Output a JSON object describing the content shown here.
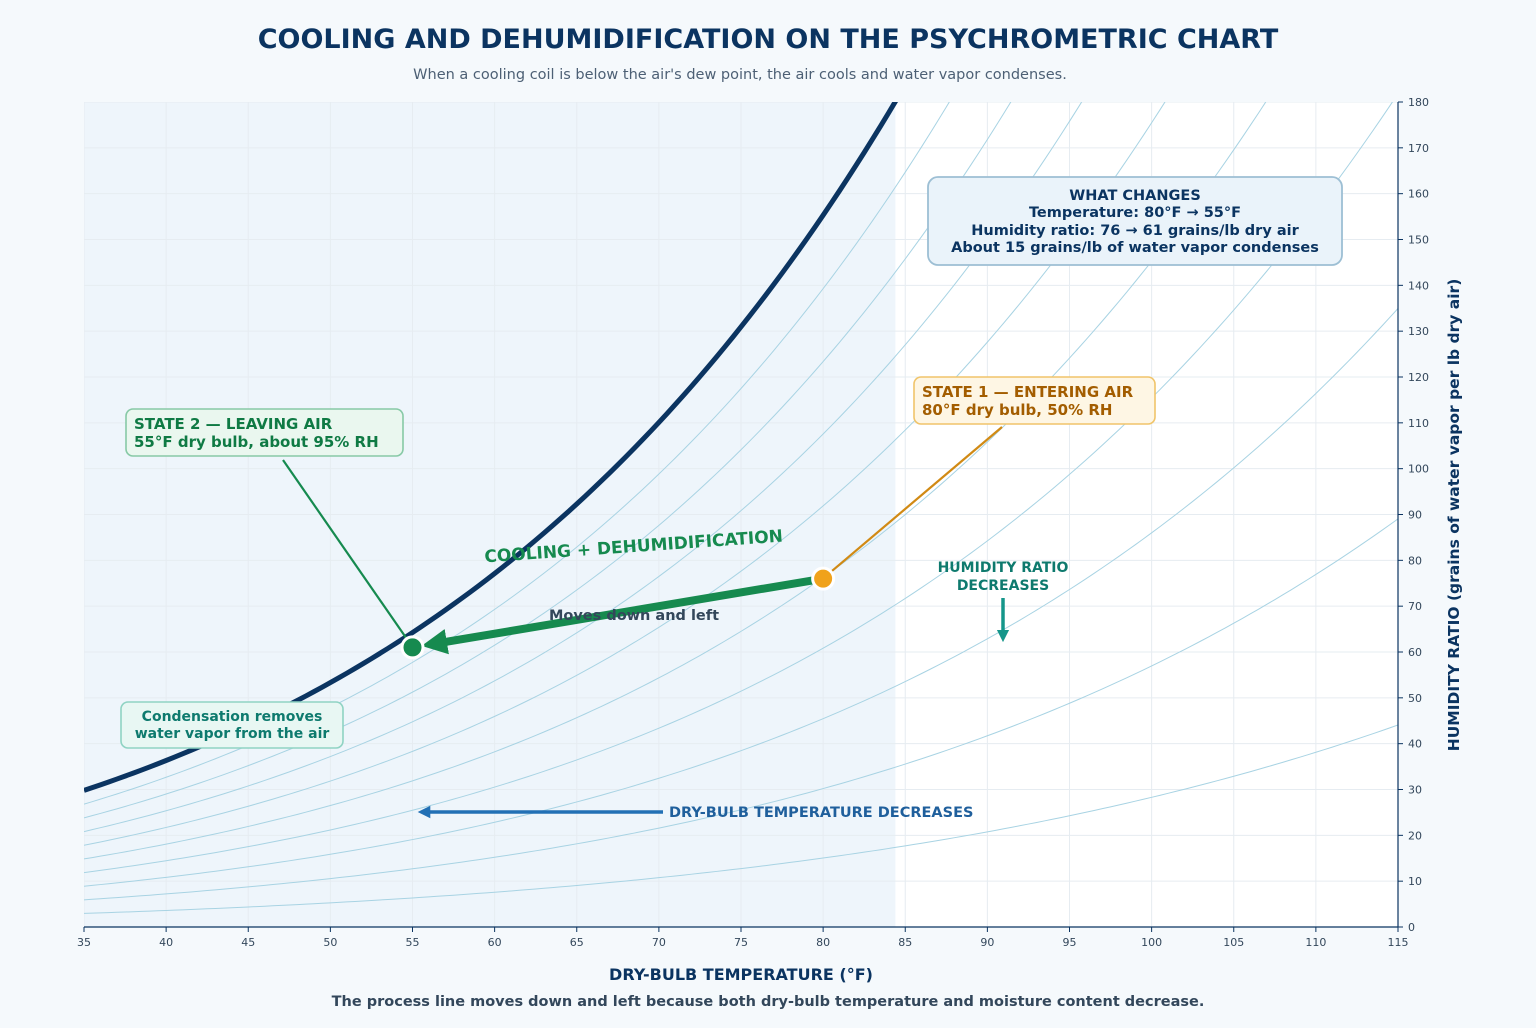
{
  "header": {
    "title": "COOLING AND DEHUMIDIFICATION ON THE PSYCHROMETRIC CHART",
    "subtitle": "When a cooling coil is below the air's dew point, the air cools and water vapor condenses."
  },
  "footer": {
    "caption": "The process line moves down and left because both dry-bulb temperature and moisture content decrease."
  },
  "colors": {
    "navy": "#0b3461",
    "saturation": "#0b3461",
    "rh_curves": "#a8d3e3",
    "grid": "#e6ecf1",
    "process_green": "#168a4f",
    "state1_orange": "#f0a21b",
    "state1_text": "#a35d00",
    "state2_green": "#0f7a44",
    "teal": "#15968a",
    "blue_arrow": "#2270b5",
    "shade": "#eef5fb"
  },
  "chart_data": {
    "type": "line",
    "xlabel": "DRY-BULB TEMPERATURE (°F)",
    "ylabel": "HUMIDITY RATIO (grains of water vapor per lb dry air)",
    "xlim": [
      35,
      115
    ],
    "ylim": [
      0,
      180
    ],
    "x_ticks": [
      35,
      40,
      45,
      50,
      55,
      60,
      65,
      70,
      75,
      80,
      85,
      90,
      95,
      100,
      105,
      110,
      115
    ],
    "y_ticks": [
      0,
      10,
      20,
      30,
      40,
      50,
      60,
      70,
      80,
      90,
      100,
      110,
      120,
      130,
      140,
      150,
      160,
      170,
      180
    ],
    "grid": true,
    "y_axis_side": "right",
    "rh_curves_percent": [
      10,
      20,
      30,
      40,
      50,
      60,
      70,
      80,
      90,
      100
    ],
    "shaded_region_x": [
      35,
      84.4
    ],
    "process": {
      "label": "COOLING + DEHUMIDIFICATION",
      "sublabel": "Moves down and left",
      "from": {
        "x": 80,
        "y": 76
      },
      "to": {
        "x": 55,
        "y": 61
      }
    },
    "points": [
      {
        "name": "state1",
        "x": 80,
        "y": 76,
        "label_line1": "STATE 1 — ENTERING AIR",
        "label_line2": "80°F dry bulb, 50% RH"
      },
      {
        "name": "state2",
        "x": 55,
        "y": 61,
        "label_line1": "STATE 2 — LEAVING AIR",
        "label_line2": "55°F dry bulb, about 95% RH"
      }
    ],
    "annotations": {
      "condensation": [
        "Condensation removes",
        "water vapor from the air"
      ],
      "humidity_ratio": [
        "HUMIDITY RATIO",
        "DECREASES"
      ],
      "dry_bulb": "DRY-BULB TEMPERATURE DECREASES",
      "what_changes": [
        "WHAT CHANGES",
        "Temperature: 80°F → 55°F",
        "Humidity ratio: 76 → 61 grains/lb dry air",
        "About 15 grains/lb of water vapor condenses"
      ]
    }
  }
}
